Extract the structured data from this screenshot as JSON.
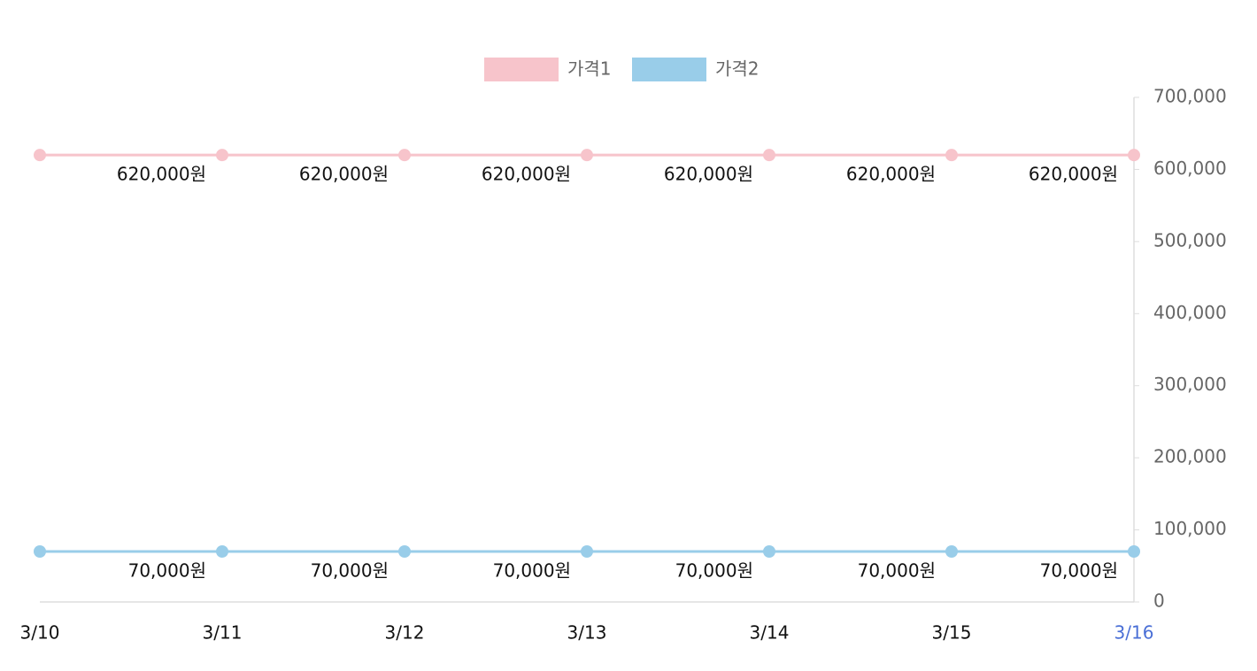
{
  "chart_data": {
    "type": "line",
    "categories": [
      "3/10",
      "3/11",
      "3/12",
      "3/13",
      "3/14",
      "3/15",
      "3/16"
    ],
    "series": [
      {
        "name": "가격1",
        "color": "#f7c4cb",
        "values": [
          620000,
          620000,
          620000,
          620000,
          620000,
          620000,
          620000
        ],
        "value_labels": [
          null,
          "620,000원",
          "620,000원",
          "620,000원",
          "620,000원",
          "620,000원",
          "620,000원"
        ]
      },
      {
        "name": "가격2",
        "color": "#99cde9",
        "values": [
          70000,
          70000,
          70000,
          70000,
          70000,
          70000,
          70000
        ],
        "value_labels": [
          null,
          "70,000원",
          "70,000원",
          "70,000원",
          "70,000원",
          "70,000원",
          "70,000원"
        ]
      }
    ],
    "ylim": [
      0,
      700000
    ],
    "yticks": [
      0,
      {
        "value": 100000,
        "label": "100,000"
      },
      {
        "value": 200000,
        "label": "200,000"
      },
      {
        "value": 300000,
        "label": "300,000"
      },
      {
        "value": 400000,
        "label": "400,000"
      },
      {
        "value": 500000,
        "label": "500,000"
      },
      {
        "value": 600000,
        "label": "600,000"
      },
      {
        "value": 700000,
        "label": "700,000"
      }
    ],
    "y_axis_side": "right",
    "legend": "top",
    "highlight_index": 6,
    "highlight_color": "#4a6fd6"
  }
}
